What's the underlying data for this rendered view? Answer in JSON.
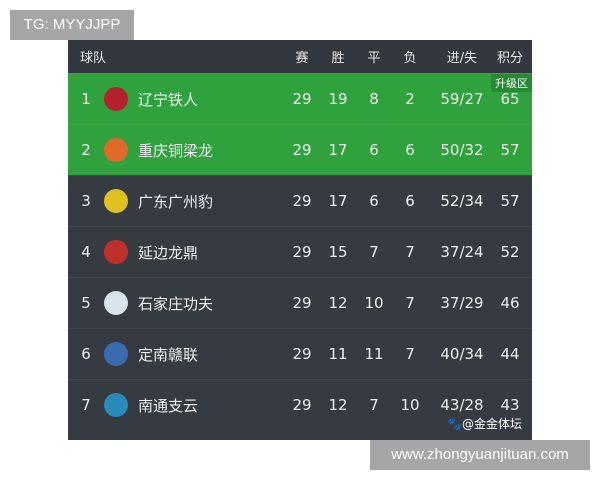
{
  "overlay_tg": "TG: MYYJJPP",
  "overlay_site": "www.zhongyuanjituan.com",
  "watermark": "🐾@金金体坛",
  "headers": {
    "team": "球队",
    "played": "赛",
    "won": "胜",
    "drawn": "平",
    "lost": "负",
    "goals": "进/失",
    "points": "积分"
  },
  "promotion_label": "升级区",
  "colors": {
    "promotion": "#2fa13d",
    "row": "#353b41"
  },
  "rows": [
    {
      "rank": "1",
      "team": "辽宁铁人",
      "p": "29",
      "w": "19",
      "d": "8",
      "l": "2",
      "gd": "59/27",
      "pts": "65",
      "logo_color": "#b3222a"
    },
    {
      "rank": "2",
      "team": "重庆铜梁龙",
      "p": "29",
      "w": "17",
      "d": "6",
      "l": "6",
      "gd": "50/32",
      "pts": "57",
      "logo_color": "#e06a2a"
    },
    {
      "rank": "3",
      "team": "广东广州豹",
      "p": "29",
      "w": "17",
      "d": "6",
      "l": "6",
      "gd": "52/34",
      "pts": "57",
      "logo_color": "#e0c020"
    },
    {
      "rank": "4",
      "team": "延边龙鼎",
      "p": "29",
      "w": "15",
      "d": "7",
      "l": "7",
      "gd": "37/24",
      "pts": "52",
      "logo_color": "#c0302a"
    },
    {
      "rank": "5",
      "team": "石家庄功夫",
      "p": "29",
      "w": "12",
      "d": "10",
      "l": "7",
      "gd": "37/29",
      "pts": "46",
      "logo_color": "#d8e4ec"
    },
    {
      "rank": "6",
      "team": "定南赣联",
      "p": "29",
      "w": "11",
      "d": "11",
      "l": "7",
      "gd": "40/34",
      "pts": "44",
      "logo_color": "#3a6ab0"
    },
    {
      "rank": "7",
      "team": "南通支云",
      "p": "29",
      "w": "12",
      "d": "7",
      "l": "10",
      "gd": "43/28",
      "pts": "43",
      "logo_color": "#2a8ab8"
    }
  ]
}
